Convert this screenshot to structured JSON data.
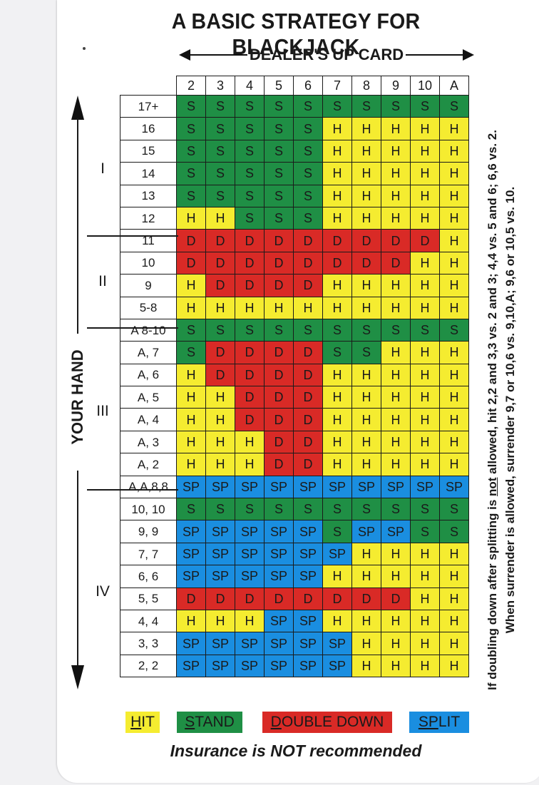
{
  "title": "A BASIC STRATEGY FOR BLACKJACK",
  "upcard_label": "DEALER'S UP CARD",
  "hand_label": "YOUR HAND",
  "dealer_cards": [
    "2",
    "3",
    "4",
    "5",
    "6",
    "7",
    "8",
    "9",
    "10",
    "A"
  ],
  "sections": [
    "I",
    "II",
    "III",
    "IV"
  ],
  "rows": [
    {
      "hand": "17+",
      "cells": [
        "S",
        "S",
        "S",
        "S",
        "S",
        "S",
        "S",
        "S",
        "S",
        "S"
      ]
    },
    {
      "hand": "16",
      "cells": [
        "S",
        "S",
        "S",
        "S",
        "S",
        "H",
        "H",
        "H",
        "H",
        "H"
      ]
    },
    {
      "hand": "15",
      "cells": [
        "S",
        "S",
        "S",
        "S",
        "S",
        "H",
        "H",
        "H",
        "H",
        "H"
      ]
    },
    {
      "hand": "14",
      "cells": [
        "S",
        "S",
        "S",
        "S",
        "S",
        "H",
        "H",
        "H",
        "H",
        "H"
      ]
    },
    {
      "hand": "13",
      "cells": [
        "S",
        "S",
        "S",
        "S",
        "S",
        "H",
        "H",
        "H",
        "H",
        "H"
      ]
    },
    {
      "hand": "12",
      "cells": [
        "H",
        "H",
        "S",
        "S",
        "S",
        "H",
        "H",
        "H",
        "H",
        "H"
      ]
    },
    {
      "hand": "11",
      "cells": [
        "D",
        "D",
        "D",
        "D",
        "D",
        "D",
        "D",
        "D",
        "D",
        "H"
      ]
    },
    {
      "hand": "10",
      "cells": [
        "D",
        "D",
        "D",
        "D",
        "D",
        "D",
        "D",
        "D",
        "H",
        "H"
      ]
    },
    {
      "hand": "9",
      "cells": [
        "H",
        "D",
        "D",
        "D",
        "D",
        "H",
        "H",
        "H",
        "H",
        "H"
      ]
    },
    {
      "hand": "5-8",
      "cells": [
        "H",
        "H",
        "H",
        "H",
        "H",
        "H",
        "H",
        "H",
        "H",
        "H"
      ]
    },
    {
      "hand": "A 8-10",
      "cells": [
        "S",
        "S",
        "S",
        "S",
        "S",
        "S",
        "S",
        "S",
        "S",
        "S"
      ]
    },
    {
      "hand": "A, 7",
      "cells": [
        "S",
        "D",
        "D",
        "D",
        "D",
        "S",
        "S",
        "H",
        "H",
        "H"
      ]
    },
    {
      "hand": "A, 6",
      "cells": [
        "H",
        "D",
        "D",
        "D",
        "D",
        "H",
        "H",
        "H",
        "H",
        "H"
      ]
    },
    {
      "hand": "A, 5",
      "cells": [
        "H",
        "H",
        "D",
        "D",
        "D",
        "H",
        "H",
        "H",
        "H",
        "H"
      ]
    },
    {
      "hand": "A, 4",
      "cells": [
        "H",
        "H",
        "D",
        "D",
        "D",
        "H",
        "H",
        "H",
        "H",
        "H"
      ]
    },
    {
      "hand": "A, 3",
      "cells": [
        "H",
        "H",
        "H",
        "D",
        "D",
        "H",
        "H",
        "H",
        "H",
        "H"
      ]
    },
    {
      "hand": "A, 2",
      "cells": [
        "H",
        "H",
        "H",
        "D",
        "D",
        "H",
        "H",
        "H",
        "H",
        "H"
      ]
    },
    {
      "hand": "A,A,8,8",
      "cells": [
        "SP",
        "SP",
        "SP",
        "SP",
        "SP",
        "SP",
        "SP",
        "SP",
        "SP",
        "SP"
      ]
    },
    {
      "hand": "10, 10",
      "cells": [
        "S",
        "S",
        "S",
        "S",
        "S",
        "S",
        "S",
        "S",
        "S",
        "S"
      ]
    },
    {
      "hand": "9, 9",
      "cells": [
        "SP",
        "SP",
        "SP",
        "SP",
        "SP",
        "S",
        "SP",
        "SP",
        "S",
        "S"
      ]
    },
    {
      "hand": "7, 7",
      "cells": [
        "SP",
        "SP",
        "SP",
        "SP",
        "SP",
        "SP",
        "H",
        "H",
        "H",
        "H"
      ]
    },
    {
      "hand": "6, 6",
      "cells": [
        "SP",
        "SP",
        "SP",
        "SP",
        "SP",
        "H",
        "H",
        "H",
        "H",
        "H"
      ]
    },
    {
      "hand": "5, 5",
      "cells": [
        "D",
        "D",
        "D",
        "D",
        "D",
        "D",
        "D",
        "D",
        "H",
        "H"
      ]
    },
    {
      "hand": "4, 4",
      "cells": [
        "H",
        "H",
        "H",
        "SP",
        "SP",
        "H",
        "H",
        "H",
        "H",
        "H"
      ]
    },
    {
      "hand": "3, 3",
      "cells": [
        "SP",
        "SP",
        "SP",
        "SP",
        "SP",
        "SP",
        "H",
        "H",
        "H",
        "H"
      ]
    },
    {
      "hand": "2, 2",
      "cells": [
        "SP",
        "SP",
        "SP",
        "SP",
        "SP",
        "SP",
        "H",
        "H",
        "H",
        "H"
      ]
    }
  ],
  "colors": {
    "H": "#f5ec30",
    "S": "#1f8f45",
    "D": "#d92a26",
    "SP": "#1a8ee0"
  },
  "legend": {
    "hit_first": "H",
    "hit_rest": "IT",
    "stand_first": "S",
    "stand_rest": "TAND",
    "double_first": "D",
    "double_rest": "OUBLE DOWN",
    "split_first": "SP",
    "split_rest": "LIT"
  },
  "note": {
    "line1_a": "If doubling down after splitting is ",
    "line1_not": "not",
    "line1_b": " allowed, hit 2,2 and 3,3 vs. 2 and 3; 4,4 vs. 5 and 6; 6,6 vs. 2.",
    "line2": "When surrender is allowed, surrender 9,7 or 10,6 vs. 9,10,A; 9,6 or 10,5 vs. 10."
  },
  "insurance": "Insurance is NOT recommended"
}
